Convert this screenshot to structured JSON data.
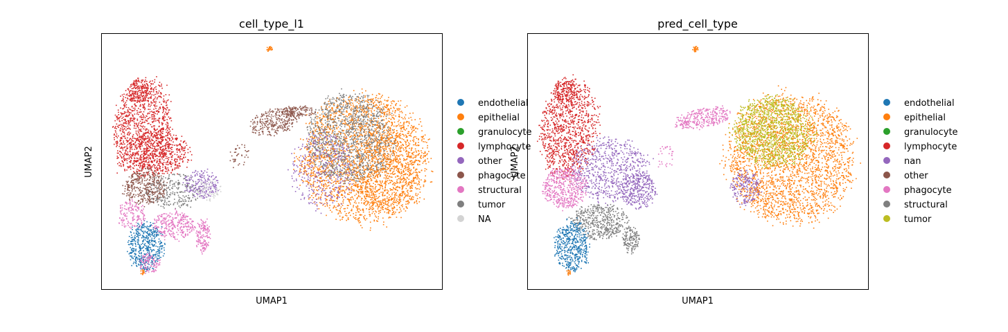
{
  "colors": {
    "blue": "#1f77b4",
    "orange": "#ff7f0e",
    "green": "#2ca02c",
    "red": "#d62728",
    "purple": "#9467bd",
    "brown": "#8c564b",
    "pink": "#e377c2",
    "gray": "#7f7f7f",
    "olive": "#bcbd22",
    "na": "#d3d3d3"
  },
  "chart_data": [
    {
      "type": "scatter",
      "title": "cell_type_l1",
      "xlabel": "UMAP1",
      "ylabel": "UMAP2",
      "grid": false,
      "ticks": false,
      "legend_placement": "right",
      "legend": [
        "endothelial",
        "epithelial",
        "granulocyte",
        "lymphocyte",
        "other",
        "phagocyte",
        "structural",
        "tumor",
        "NA"
      ],
      "legend_colors": [
        "#1f77b4",
        "#ff7f0e",
        "#2ca02c",
        "#d62728",
        "#9467bd",
        "#8c564b",
        "#e377c2",
        "#7f7f7f",
        "#d3d3d3"
      ]
    },
    {
      "type": "scatter",
      "title": "pred_cell_type",
      "xlabel": "UMAP1",
      "ylabel": "UMAP2",
      "grid": false,
      "ticks": false,
      "legend_placement": "right",
      "legend": [
        "endothelial",
        "epithelial",
        "granulocyte",
        "lymphocyte",
        "nan",
        "other",
        "phagocyte",
        "structural",
        "tumor"
      ],
      "legend_colors": [
        "#1f77b4",
        "#ff7f0e",
        "#2ca02c",
        "#d62728",
        "#9467bd",
        "#8c564b",
        "#e377c2",
        "#7f7f7f",
        "#bcbd22"
      ]
    }
  ]
}
